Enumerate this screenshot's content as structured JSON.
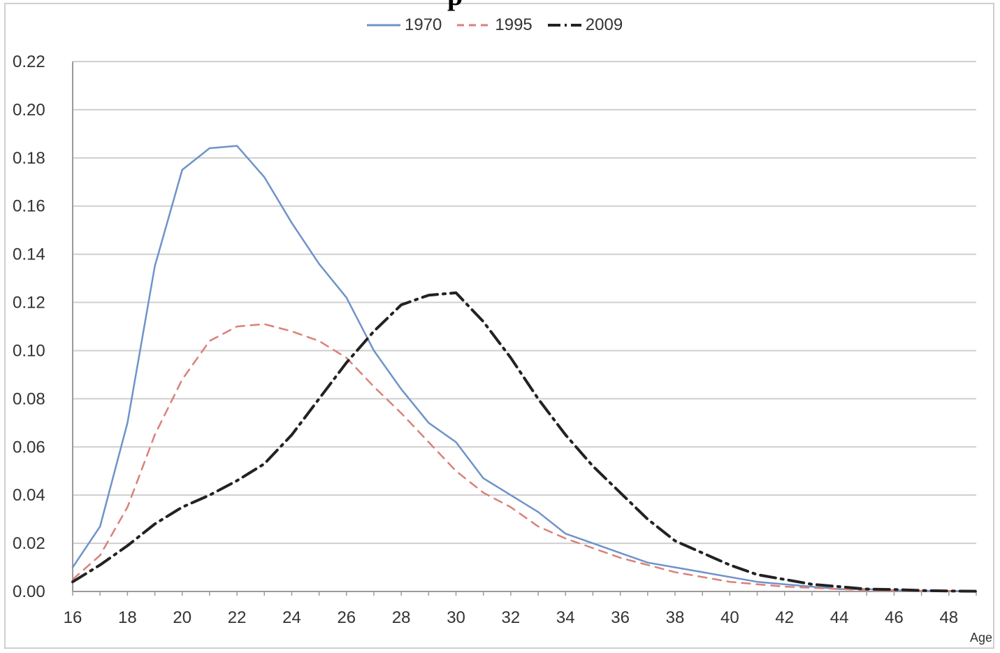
{
  "title_fragment": "p",
  "chart_data": {
    "type": "line",
    "title": "",
    "xlabel": "Age",
    "ylabel": "",
    "xlim": [
      16,
      49
    ],
    "ylim": [
      0,
      0.22
    ],
    "x_ticks": [
      "16",
      "18",
      "20",
      "22",
      "24",
      "26",
      "28",
      "30",
      "32",
      "34",
      "36",
      "38",
      "40",
      "42",
      "44",
      "46",
      "48"
    ],
    "y_ticks": [
      "0.00",
      "0.02",
      "0.04",
      "0.06",
      "0.08",
      "0.10",
      "0.12",
      "0.14",
      "0.16",
      "0.18",
      "0.20",
      "0.22"
    ],
    "grid": true,
    "legend_position": "top-center",
    "x": [
      16,
      17,
      18,
      19,
      20,
      21,
      22,
      23,
      24,
      25,
      26,
      27,
      28,
      29,
      30,
      31,
      32,
      33,
      34,
      35,
      36,
      37,
      38,
      39,
      40,
      41,
      42,
      43,
      44,
      45,
      46,
      47,
      48,
      49
    ],
    "series": [
      {
        "name": "1970",
        "color": "#6f93c9",
        "dash": "solid",
        "values": [
          0.01,
          0.027,
          0.07,
          0.135,
          0.175,
          0.184,
          0.185,
          0.172,
          0.153,
          0.136,
          0.122,
          0.1,
          0.084,
          0.07,
          0.062,
          0.047,
          0.04,
          0.033,
          0.024,
          0.02,
          0.016,
          0.012,
          0.01,
          0.008,
          0.006,
          0.004,
          0.003,
          0.002,
          0.001,
          0.001,
          0.0005,
          0.0003,
          0.0002,
          0.0001
        ]
      },
      {
        "name": "1995",
        "color": "#d9817a",
        "dash": "dash",
        "values": [
          0.005,
          0.015,
          0.035,
          0.065,
          0.088,
          0.104,
          0.11,
          0.111,
          0.108,
          0.104,
          0.097,
          0.085,
          0.074,
          0.062,
          0.05,
          0.041,
          0.035,
          0.027,
          0.022,
          0.018,
          0.014,
          0.011,
          0.008,
          0.006,
          0.004,
          0.003,
          0.002,
          0.0015,
          0.001,
          0.0005,
          0.0003,
          0.0002,
          0.0001,
          0.0001
        ]
      },
      {
        "name": "2009",
        "color": "#222222",
        "dash": "dashdot",
        "values": [
          0.004,
          0.011,
          0.019,
          0.028,
          0.035,
          0.04,
          0.046,
          0.053,
          0.065,
          0.08,
          0.095,
          0.108,
          0.119,
          0.123,
          0.124,
          0.112,
          0.097,
          0.08,
          0.065,
          0.052,
          0.041,
          0.03,
          0.021,
          0.016,
          0.011,
          0.007,
          0.005,
          0.003,
          0.002,
          0.001,
          0.0008,
          0.0004,
          0.0002,
          0.0001
        ]
      }
    ]
  }
}
